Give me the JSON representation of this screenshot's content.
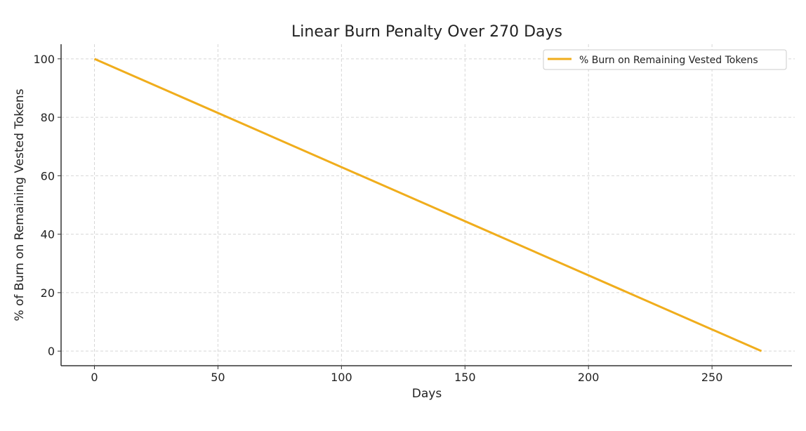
{
  "chart_data": {
    "type": "line",
    "title": "Linear Burn Penalty Over 270 Days",
    "xlabel": "Days",
    "ylabel": "% of Burn on Remaining Vested Tokens",
    "xlim": [
      -13.5,
      283.5
    ],
    "ylim": [
      -5,
      105
    ],
    "xticks": [
      0,
      50,
      100,
      150,
      200,
      250
    ],
    "yticks": [
      0,
      20,
      40,
      60,
      80,
      100
    ],
    "grid": true,
    "legend_position": "top-right",
    "series": [
      {
        "name": "% Burn on Remaining Vested Tokens",
        "color": "#f0ad1c",
        "x": [
          0,
          270
        ],
        "y": [
          100,
          0
        ]
      }
    ]
  }
}
